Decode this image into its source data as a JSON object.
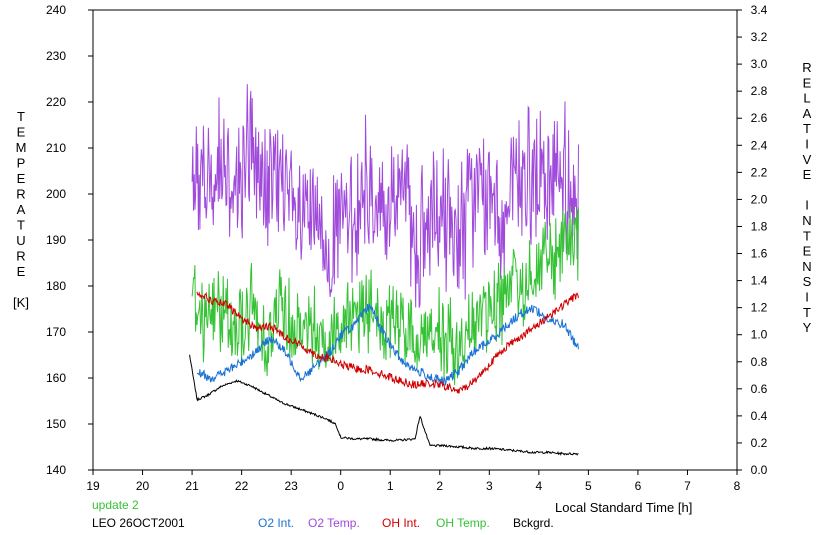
{
  "chart_data": {
    "type": "line",
    "title": "",
    "xlabel": "Local Standard Time [h]",
    "ylabel_left": [
      "T",
      "E",
      "M",
      "P",
      "E",
      "R",
      "A",
      "T",
      "U",
      "R",
      "E",
      "",
      "[K]"
    ],
    "ylabel_right": [
      "R",
      "E",
      "L",
      "A",
      "T",
      "I",
      "V",
      "E",
      "",
      "I",
      "N",
      "T",
      "E",
      "N",
      "S",
      "I",
      "T",
      "Y"
    ],
    "x_ticks": [
      "19",
      "20",
      "21",
      "22",
      "23",
      "0",
      "1",
      "2",
      "3",
      "4",
      "5",
      "6",
      "7",
      "8"
    ],
    "x_range_hours": [
      19,
      32
    ],
    "y_left_range": [
      140,
      240
    ],
    "y_left_ticks": [
      "140",
      "150",
      "160",
      "170",
      "180",
      "190",
      "200",
      "210",
      "220",
      "230",
      "240"
    ],
    "y_right_range": [
      0.0,
      3.4
    ],
    "y_right_ticks": [
      "0.0",
      "0.2",
      "0.4",
      "0.6",
      "0.8",
      "1.0",
      "1.2",
      "1.4",
      "1.6",
      "1.8",
      "2.0",
      "2.2",
      "2.4",
      "2.6",
      "2.8",
      "3.0",
      "3.2",
      "3.4"
    ],
    "grid": false,
    "status_text": "update 2",
    "station_text": "LEO 26OCT2001",
    "series": [
      {
        "name": "O2 Int.",
        "color": "#1a72d4",
        "axis": "right",
        "x": [
          21.1,
          21.4,
          21.7,
          22.0,
          22.3,
          22.6,
          22.9,
          23.2,
          23.5,
          23.8,
          24.0,
          24.3,
          24.6,
          24.9,
          25.2,
          25.5,
          25.8,
          26.1,
          26.4,
          26.7,
          27.0,
          27.3,
          27.6,
          27.9,
          28.2,
          28.5,
          28.8
        ],
        "y": [
          0.72,
          0.68,
          0.73,
          0.8,
          0.88,
          0.98,
          0.86,
          0.68,
          0.77,
          0.88,
          1.0,
          1.08,
          1.22,
          0.98,
          0.82,
          0.74,
          0.69,
          0.65,
          0.74,
          0.88,
          0.95,
          1.05,
          1.15,
          1.2,
          1.1,
          1.08,
          0.9
        ]
      },
      {
        "name": "O2 Temp.",
        "color": "#a04adc",
        "axis": "left",
        "x": [
          21.0,
          21.3,
          21.6,
          21.9,
          22.2,
          22.5,
          22.8,
          23.1,
          23.4,
          23.7,
          24.0,
          24.3,
          24.6,
          24.9,
          25.2,
          25.5,
          25.8,
          26.1,
          26.4,
          26.7,
          27.0,
          27.3,
          27.6,
          27.9,
          28.2,
          28.5,
          28.8
        ],
        "y": [
          205,
          200,
          208,
          202,
          212,
          198,
          206,
          192,
          195,
          188,
          193,
          197,
          202,
          194,
          205,
          188,
          192,
          196,
          190,
          200,
          198,
          194,
          202,
          205,
          201,
          206,
          198
        ]
      },
      {
        "name": "OH Int.",
        "color": "#d00000",
        "axis": "right",
        "x": [
          21.1,
          21.4,
          21.7,
          22.0,
          22.3,
          22.6,
          22.9,
          23.2,
          23.5,
          23.8,
          24.0,
          24.3,
          24.6,
          24.9,
          25.2,
          25.5,
          25.8,
          26.1,
          26.4,
          26.7,
          27.0,
          27.3,
          27.6,
          27.9,
          28.2,
          28.5,
          28.8
        ],
        "y": [
          1.32,
          1.25,
          1.22,
          1.12,
          1.05,
          1.06,
          0.98,
          0.92,
          0.85,
          0.82,
          0.78,
          0.75,
          0.74,
          0.7,
          0.66,
          0.63,
          0.64,
          0.62,
          0.58,
          0.66,
          0.78,
          0.9,
          0.98,
          1.05,
          1.14,
          1.22,
          1.3
        ]
      },
      {
        "name": "OH Temp.",
        "color": "#35c235",
        "axis": "left",
        "x": [
          21.0,
          21.3,
          21.6,
          21.9,
          22.2,
          22.5,
          22.8,
          23.1,
          23.4,
          23.7,
          24.0,
          24.3,
          24.6,
          24.9,
          25.2,
          25.5,
          25.8,
          26.1,
          26.4,
          26.7,
          27.0,
          27.3,
          27.6,
          27.9,
          28.2,
          28.5,
          28.8
        ],
        "y": [
          178,
          173,
          176,
          170,
          175,
          168,
          176,
          170,
          172,
          168,
          172,
          176,
          174,
          170,
          172,
          168,
          170,
          168,
          166,
          172,
          176,
          178,
          180,
          183,
          186,
          188,
          189
        ]
      },
      {
        "name": "Bckgrd.",
        "color": "#000000",
        "axis": "right",
        "x": [
          20.95,
          21.1,
          21.3,
          21.6,
          21.9,
          22.2,
          22.5,
          22.8,
          23.1,
          23.4,
          23.7,
          23.9,
          24.0,
          24.3,
          24.6,
          24.9,
          25.2,
          25.5,
          25.6,
          25.8,
          26.1,
          26.4,
          26.7,
          27.0,
          27.3,
          27.6,
          27.9,
          28.2,
          28.5,
          28.8
        ],
        "y": [
          0.85,
          0.52,
          0.55,
          0.62,
          0.66,
          0.62,
          0.56,
          0.5,
          0.46,
          0.42,
          0.38,
          0.34,
          0.24,
          0.23,
          0.23,
          0.22,
          0.22,
          0.23,
          0.4,
          0.18,
          0.18,
          0.17,
          0.16,
          0.16,
          0.15,
          0.14,
          0.13,
          0.13,
          0.12,
          0.12
        ]
      }
    ],
    "noise": {
      "O2 Temp.": 13,
      "OH Temp.": 8,
      "O2 Int.": 0.035,
      "OH Int.": 0.03,
      "Bckgrd.": 0.008
    }
  }
}
